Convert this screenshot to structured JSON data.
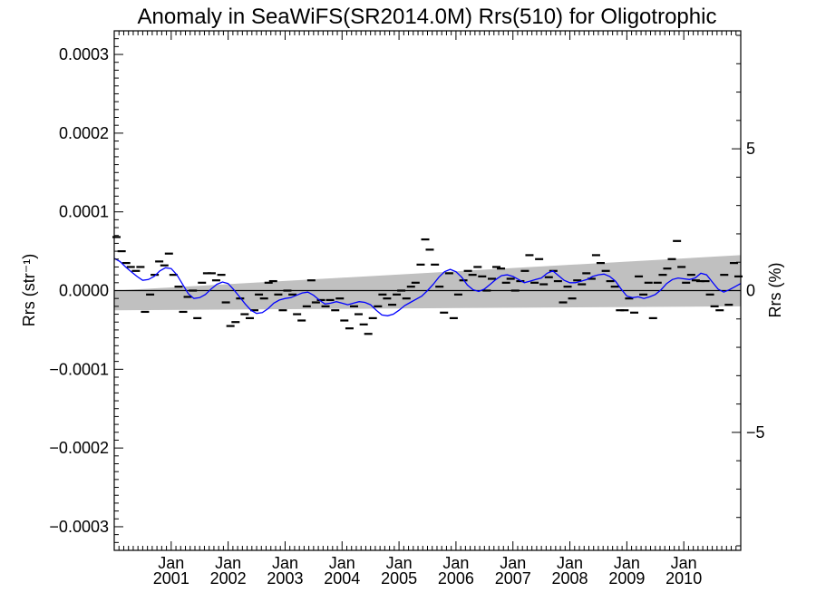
{
  "chart_data": {
    "type": "scatter",
    "title": "Anomaly in SeaWiFS(SR2014.0M) Rrs(510) for Oligotrophic",
    "ylabel_left": "Rrs (str⁻¹)",
    "ylabel_right": "Rrs (%)",
    "xlim": [
      2000.0,
      2011.0
    ],
    "ylim": [
      -0.00033,
      0.00033
    ],
    "ylim_right_percent": [
      -9.16,
      9.16
    ],
    "yticks_left": [
      {
        "value": 0.0003,
        "label": "0.0003"
      },
      {
        "value": 0.0002,
        "label": "0.0002"
      },
      {
        "value": 0.0001,
        "label": "0.0001"
      },
      {
        "value": 0.0,
        "label": "0.0000"
      },
      {
        "value": -0.0001,
        "label": "−0.0001"
      },
      {
        "value": -0.0002,
        "label": "−0.0002"
      },
      {
        "value": -0.0003,
        "label": "−0.0003"
      }
    ],
    "yticks_right": [
      {
        "value": 5,
        "label": "5"
      },
      {
        "value": 0,
        "label": "0"
      },
      {
        "value": -5,
        "label": "−5"
      }
    ],
    "xticks": [
      {
        "value": 2001.0,
        "line1": "Jan",
        "line2": "2001"
      },
      {
        "value": 2002.0,
        "line1": "Jan",
        "line2": "2002"
      },
      {
        "value": 2003.0,
        "line1": "Jan",
        "line2": "2003"
      },
      {
        "value": 2004.0,
        "line1": "Jan",
        "line2": "2004"
      },
      {
        "value": 2005.0,
        "line1": "Jan",
        "line2": "2005"
      },
      {
        "value": 2006.0,
        "line1": "Jan",
        "line2": "2006"
      },
      {
        "value": 2007.0,
        "line1": "Jan",
        "line2": "2007"
      },
      {
        "value": 2008.0,
        "line1": "Jan",
        "line2": "2008"
      },
      {
        "value": 2009.0,
        "line1": "Jan",
        "line2": "2009"
      },
      {
        "value": 2010.0,
        "line1": "Jan",
        "line2": "2010"
      }
    ],
    "zero_line": 0.0,
    "trend_band": {
      "color": "#c0c0c0",
      "x": [
        2000.0,
        2011.0
      ],
      "upper": [
        0.0,
        4.5e-05
      ],
      "lower": [
        -2.5e-05,
        -2e-05
      ]
    },
    "series": [
      {
        "style": "dash-markers",
        "color": "#000000",
        "x": [
          2000.04,
          2000.13,
          2000.21,
          2000.29,
          2000.38,
          2000.46,
          2000.54,
          2000.63,
          2000.71,
          2000.79,
          2000.88,
          2000.96,
          2001.04,
          2001.13,
          2001.21,
          2001.29,
          2001.38,
          2001.46,
          2001.54,
          2001.63,
          2001.71,
          2001.79,
          2001.88,
          2001.96,
          2002.04,
          2002.13,
          2002.21,
          2002.29,
          2002.38,
          2002.46,
          2002.54,
          2002.63,
          2002.71,
          2002.79,
          2002.88,
          2002.96,
          2003.04,
          2003.13,
          2003.21,
          2003.29,
          2003.38,
          2003.46,
          2003.54,
          2003.63,
          2003.71,
          2003.79,
          2003.88,
          2003.96,
          2004.04,
          2004.13,
          2004.21,
          2004.29,
          2004.38,
          2004.46,
          2004.54,
          2004.63,
          2004.71,
          2004.79,
          2004.88,
          2004.96,
          2005.04,
          2005.13,
          2005.21,
          2005.29,
          2005.38,
          2005.46,
          2005.54,
          2005.63,
          2005.71,
          2005.79,
          2005.88,
          2005.96,
          2006.04,
          2006.13,
          2006.21,
          2006.29,
          2006.38,
          2006.46,
          2006.54,
          2006.63,
          2006.71,
          2006.79,
          2006.88,
          2006.96,
          2007.04,
          2007.13,
          2007.21,
          2007.29,
          2007.38,
          2007.46,
          2007.54,
          2007.63,
          2007.71,
          2007.79,
          2007.88,
          2007.96,
          2008.04,
          2008.13,
          2008.21,
          2008.29,
          2008.38,
          2008.46,
          2008.54,
          2008.63,
          2008.71,
          2008.79,
          2008.88,
          2008.96,
          2009.04,
          2009.13,
          2009.21,
          2009.29,
          2009.38,
          2009.46,
          2009.54,
          2009.63,
          2009.71,
          2009.79,
          2009.88,
          2009.96,
          2010.04,
          2010.13,
          2010.21,
          2010.29,
          2010.38,
          2010.46,
          2010.54,
          2010.63,
          2010.71,
          2010.79,
          2010.88,
          2010.96
        ],
        "y": [
          6.8e-05,
          5e-05,
          3.5e-05,
          3e-05,
          2.5e-05,
          3e-05,
          -2.7e-05,
          -5e-06,
          2e-05,
          3.7e-05,
          3.2e-05,
          4.7e-05,
          2e-05,
          5e-06,
          -2.7e-05,
          -8e-06,
          0.0,
          -3.5e-05,
          1e-05,
          2.2e-05,
          2.2e-05,
          1.3e-05,
          2e-05,
          -1.5e-05,
          -4.5e-05,
          -4e-05,
          -1e-05,
          -3e-05,
          -3.5e-05,
          -2.5e-05,
          -5e-06,
          -1e-05,
          1e-05,
          1.2e-05,
          -5e-06,
          -2.5e-05,
          0.0,
          -5e-06,
          -3e-05,
          -3.8e-05,
          -2e-05,
          1.3e-05,
          -1.5e-05,
          -1.2e-05,
          -2e-05,
          -1.2e-05,
          -2.5e-05,
          -1e-05,
          -3.8e-05,
          -4.8e-05,
          -2e-05,
          -3e-05,
          -4.3e-05,
          -5.5e-05,
          -3.5e-05,
          -2e-05,
          -5e-06,
          -1e-05,
          -1.8e-05,
          -5e-06,
          0.0,
          -1e-05,
          5e-06,
          1e-05,
          3.3e-05,
          6.5e-05,
          5.2e-05,
          3.3e-05,
          5e-06,
          -2.8e-05,
          2.2e-05,
          -3.5e-05,
          -5e-06,
          1.3e-05,
          2.5e-05,
          2e-05,
          3e-05,
          1.8e-05,
          0.0,
          1.5e-05,
          3e-05,
          2.8e-05,
          1e-05,
          1.5e-05,
          0.0,
          1.2e-05,
          2.5e-05,
          4.5e-05,
          1e-05,
          4e-05,
          8e-06,
          1.7e-05,
          2.5e-05,
          1.2e-05,
          -1.5e-05,
          5e-06,
          -1e-05,
          1.3e-05,
          8e-06,
          2.2e-05,
          1.5e-05,
          4.5e-05,
          3.5e-05,
          2.5e-05,
          1.2e-05,
          5e-06,
          -2.5e-05,
          -2.5e-05,
          -1e-05,
          -2.8e-05,
          1.8e-05,
          -5e-06,
          1e-05,
          -3.5e-05,
          1e-05,
          2e-05,
          2.8e-05,
          4e-05,
          6.3e-05,
          3e-05,
          1e-05,
          2e-05,
          1.3e-05,
          1.2e-05,
          1.2e-05,
          -5e-06,
          -2e-05,
          -2.5e-05,
          2e-05,
          -1.8e-05,
          3.5e-05,
          1.8e-05
        ]
      },
      {
        "style": "line",
        "color": "#0000ff",
        "x": [
          2000.0,
          2000.1,
          2000.2,
          2000.3,
          2000.4,
          2000.5,
          2000.6,
          2000.7,
          2000.8,
          2000.9,
          2001.0,
          2001.1,
          2001.2,
          2001.3,
          2001.4,
          2001.5,
          2001.6,
          2001.7,
          2001.8,
          2001.9,
          2002.0,
          2002.1,
          2002.2,
          2002.3,
          2002.4,
          2002.5,
          2002.6,
          2002.7,
          2002.8,
          2002.9,
          2003.0,
          2003.1,
          2003.2,
          2003.3,
          2003.4,
          2003.5,
          2003.6,
          2003.7,
          2003.8,
          2003.9,
          2004.0,
          2004.1,
          2004.2,
          2004.3,
          2004.4,
          2004.5,
          2004.6,
          2004.7,
          2004.8,
          2004.9,
          2005.0,
          2005.1,
          2005.2,
          2005.3,
          2005.4,
          2005.5,
          2005.6,
          2005.7,
          2005.8,
          2005.9,
          2006.0,
          2006.1,
          2006.2,
          2006.3,
          2006.4,
          2006.5,
          2006.6,
          2006.7,
          2006.8,
          2006.9,
          2007.0,
          2007.1,
          2007.2,
          2007.3,
          2007.4,
          2007.5,
          2007.6,
          2007.7,
          2007.8,
          2007.9,
          2008.0,
          2008.1,
          2008.2,
          2008.3,
          2008.4,
          2008.5,
          2008.6,
          2008.7,
          2008.8,
          2008.9,
          2009.0,
          2009.1,
          2009.2,
          2009.3,
          2009.4,
          2009.5,
          2009.6,
          2009.7,
          2009.8,
          2009.9,
          2010.0,
          2010.1,
          2010.2,
          2010.3,
          2010.4,
          2010.5,
          2010.6,
          2010.7,
          2010.8,
          2010.9,
          2011.0
        ],
        "y": [
          4.1e-05,
          3.7e-05,
          3e-05,
          2.4e-05,
          1.8e-05,
          1.3e-05,
          1.4e-05,
          1.8e-05,
          2.5e-05,
          2.9e-05,
          2.8e-05,
          2e-05,
          8e-06,
          -4e-06,
          -1e-05,
          -9e-06,
          -5e-06,
          2e-06,
          8e-06,
          1.1e-05,
          9e-06,
          1e-06,
          -8e-06,
          -1.7e-05,
          -2.5e-05,
          -2.9e-05,
          -2.8e-05,
          -2.3e-05,
          -1.6e-05,
          -1.2e-05,
          -1e-05,
          -9e-06,
          -6e-06,
          -3e-06,
          -2e-06,
          -6e-06,
          -1.2e-05,
          -1.7e-05,
          -1.6e-05,
          -1.4e-05,
          -1.6e-05,
          -1.8e-05,
          -1.6e-05,
          -1.4e-05,
          -1.5e-05,
          -1.8e-05,
          -2.5e-05,
          -3.1e-05,
          -3.2e-05,
          -3e-05,
          -2.5e-05,
          -1.9e-05,
          -1.5e-05,
          -1.1e-05,
          -7e-06,
          0.0,
          8e-06,
          1.7e-05,
          2.4e-05,
          2.7e-05,
          2.4e-05,
          1.7e-05,
          7e-06,
          1e-06,
          -1e-06,
          2e-06,
          8e-06,
          1.4e-05,
          1.9e-05,
          2e-05,
          1.8e-05,
          1.4e-05,
          1e-05,
          1.2e-05,
          1.4e-05,
          1.6e-05,
          2.2e-05,
          2.5e-05,
          1.9e-05,
          1.3e-05,
          1e-05,
          1e-05,
          1.2e-05,
          1.4e-05,
          1.8e-05,
          2e-05,
          2.1e-05,
          1.8e-05,
          1.2e-05,
          2e-06,
          -7e-06,
          -9e-06,
          -8e-06,
          -1e-05,
          -8e-06,
          -5e-06,
          1e-06,
          9e-06,
          1.4e-05,
          1.6e-05,
          1.5e-05,
          1.4e-05,
          1.6e-05,
          2.2e-05,
          2e-05,
          1.1e-05,
          2e-06,
          -2e-06,
          1e-06,
          5e-06,
          9e-06
        ]
      }
    ]
  }
}
